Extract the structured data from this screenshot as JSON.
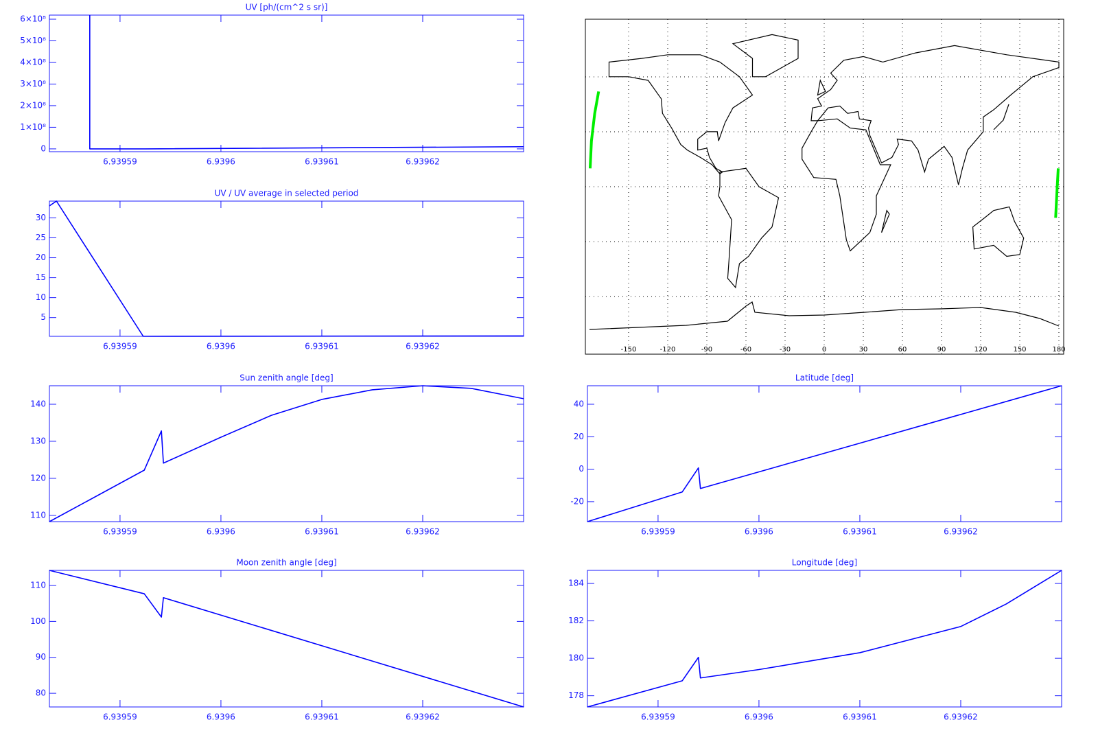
{
  "chart_data": [
    {
      "type": "line",
      "title": "UV [ph/(cm^2 s sr)]",
      "color": "#0000ff",
      "x": [
        6.939587,
        6.939587,
        6.9395925,
        6.93963
      ],
      "values": [
        619000000,
        0,
        0,
        10000000
      ],
      "xlim": [
        6.939583,
        6.93963
      ],
      "xticks": [
        6.93959,
        6.9396,
        6.93961,
        6.93962
      ],
      "ylim": [
        -13000000,
        619000000
      ],
      "yticks": [
        0,
        {
          "value": 100000000,
          "label": "1×10⁸"
        },
        {
          "value": 200000000,
          "label": "2×10⁸"
        },
        {
          "value": 300000000,
          "label": "3×10⁸"
        },
        {
          "value": 400000000,
          "label": "4×10⁸"
        },
        {
          "value": 500000000,
          "label": "5×10⁸"
        },
        {
          "value": 600000000,
          "label": "6×10⁸"
        }
      ]
    },
    {
      "type": "line",
      "title": "UV / UV average in selected period",
      "color": "#0000ff",
      "x": [
        6.939583,
        6.9395837,
        6.9395923,
        6.93963
      ],
      "values": [
        33,
        34.2,
        0.3,
        0.4
      ],
      "xlim": [
        6.939583,
        6.93963
      ],
      "xticks": [
        6.93959,
        6.9396,
        6.93961,
        6.93962
      ],
      "ylim": [
        0.3,
        34.2
      ],
      "yticks": [
        5,
        10,
        15,
        20,
        25,
        30
      ]
    },
    {
      "type": "line",
      "title": "Sun zenith angle [deg]",
      "color": "#0000ff",
      "x": [
        6.939583,
        6.9395924,
        6.9395941,
        6.9395943,
        6.9396,
        6.939605,
        6.93961,
        6.939615,
        6.93962,
        6.9396248,
        6.93963
      ],
      "values": [
        108.3,
        122.2,
        132.8,
        124.1,
        131.1,
        137,
        141.3,
        143.9,
        145,
        144.3,
        141.5
      ],
      "xlim": [
        6.939583,
        6.93963
      ],
      "xticks": [
        6.93959,
        6.9396,
        6.93961,
        6.93962
      ],
      "ylim": [
        108.3,
        145
      ],
      "yticks": [
        110,
        120,
        130,
        140
      ]
    },
    {
      "type": "line",
      "title": "Moon zenith angle [deg]",
      "color": "#0000ff",
      "x": [
        6.939583,
        6.9395924,
        6.9395941,
        6.9395943,
        6.93963
      ],
      "values": [
        114.2,
        107.7,
        101.2,
        106.6,
        76.2
      ],
      "xlim": [
        6.939583,
        6.93963
      ],
      "xticks": [
        6.93959,
        6.9396,
        6.93961,
        6.93962
      ],
      "ylim": [
        76.2,
        114.2
      ],
      "yticks": [
        80,
        90,
        100,
        110
      ]
    },
    {
      "type": "map",
      "xlim": [
        -180,
        180
      ],
      "ylim": [
        -90,
        90
      ],
      "xticks": [
        -150,
        -120,
        -90,
        -60,
        -30,
        0,
        30,
        60,
        90,
        120,
        150,
        180
      ],
      "yticks": [
        -60,
        -30,
        0,
        30,
        60
      ],
      "ytick_labels": false,
      "grid": true,
      "series": [
        {
          "color": "#00ee00",
          "x": [
            -179.5,
            -178.5,
            -176,
            -173
          ],
          "values": [
            10,
            25,
            40,
            52
          ]
        },
        {
          "color": "#00ee00",
          "x": [
            177.5,
            178.5,
            179.5
          ],
          "values": [
            -17,
            -3,
            10
          ]
        }
      ]
    },
    {
      "type": "line",
      "title": "Latitude [deg]",
      "color": "#0000ff",
      "x": [
        6.939583,
        6.9395924,
        6.939594,
        6.9395942,
        6.93963
      ],
      "values": [
        -32.3,
        -14,
        0.8,
        -11.9,
        51.4
      ],
      "xlim": [
        6.939583,
        6.93963
      ],
      "xticks": [
        6.93959,
        6.9396,
        6.93961,
        6.93962
      ],
      "ylim": [
        -32.3,
        51.4
      ],
      "yticks": [
        -20,
        0,
        20,
        40
      ]
    },
    {
      "type": "line",
      "title": "Longitude [deg]",
      "color": "#0000ff",
      "x": [
        6.939583,
        6.9395924,
        6.939594,
        6.9395942,
        6.9396,
        6.93961,
        6.939615,
        6.93962,
        6.9396245,
        6.93963
      ],
      "values": [
        177.4,
        178.8,
        180.05,
        178.95,
        179.4,
        180.3,
        181.0,
        181.7,
        182.9,
        184.7
      ],
      "xlim": [
        6.939583,
        6.93963
      ],
      "xticks": [
        6.93959,
        6.9396,
        6.93961,
        6.93962
      ],
      "ylim": [
        177.4,
        184.7
      ],
      "yticks": [
        178,
        180,
        182,
        184
      ]
    }
  ]
}
